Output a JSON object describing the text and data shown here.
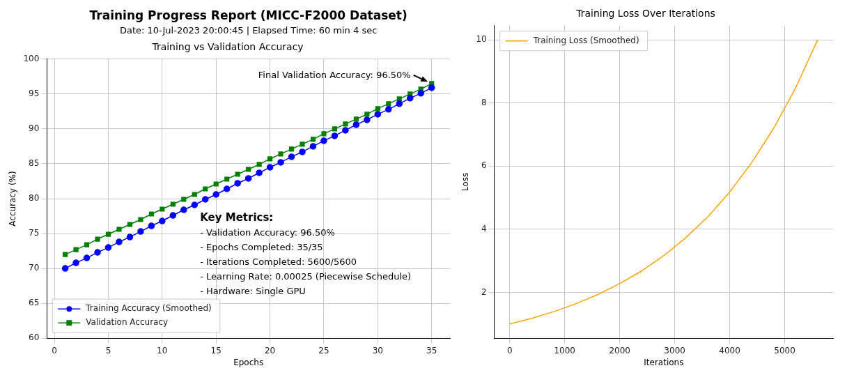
{
  "chart_data": [
    {
      "type": "line",
      "title": "Training vs Validation Accuracy",
      "xlabel": "Epochs",
      "ylabel": "Accuracy (%)",
      "x": [
        1,
        2,
        3,
        4,
        5,
        6,
        7,
        8,
        9,
        10,
        11,
        12,
        13,
        14,
        15,
        16,
        17,
        18,
        19,
        20,
        21,
        22,
        23,
        24,
        25,
        26,
        27,
        28,
        29,
        30,
        31,
        32,
        33,
        34,
        35
      ],
      "series": [
        {
          "name": "Training Accuracy (Smoothed)",
          "color": "#0000ff",
          "marker": "circle",
          "values": [
            70.0,
            70.8,
            71.5,
            72.3,
            73.0,
            73.8,
            74.5,
            75.3,
            76.1,
            76.8,
            77.6,
            78.4,
            79.1,
            79.9,
            80.6,
            81.4,
            82.2,
            82.9,
            83.7,
            84.5,
            85.2,
            86.0,
            86.7,
            87.5,
            88.3,
            89.0,
            89.8,
            90.6,
            91.3,
            92.1,
            92.8,
            93.6,
            94.4,
            95.1,
            95.9
          ]
        },
        {
          "name": "Validation Accuracy",
          "color": "#008000",
          "marker": "square",
          "values": [
            72.0,
            72.7,
            73.4,
            74.2,
            74.9,
            75.6,
            76.3,
            77.0,
            77.8,
            78.5,
            79.2,
            79.9,
            80.6,
            81.4,
            82.1,
            82.8,
            83.5,
            84.2,
            84.9,
            85.7,
            86.4,
            87.1,
            87.8,
            88.5,
            89.3,
            90.0,
            90.7,
            91.4,
            92.1,
            92.9,
            93.6,
            94.3,
            95.0,
            95.7,
            96.5
          ]
        }
      ],
      "xlim": [
        -0.7,
        36.7
      ],
      "xticks": [
        0,
        5,
        10,
        15,
        20,
        25,
        30,
        35
      ],
      "ylim": [
        60,
        100
      ],
      "yticks": [
        60,
        65,
        70,
        75,
        80,
        85,
        90,
        95,
        100
      ],
      "grid": true,
      "legend": "bottom left",
      "line_style": "solid",
      "annotations": [
        "Training Progress Report (MICC-F2000 Dataset)",
        "Date: 10-Jul-2023 20:00:45 | Elapsed Time: 60 min 4 sec",
        "Key Metrics:",
        "- Validation Accuracy: 96.50%",
        "- Epochs Completed: 35/35",
        "- Iterations Completed: 5600/5600",
        "- Learning Rate: 0.00025 (Piecewise Schedule)",
        "- Hardware: Single GPU",
        {
          "text": "Final Validation Accuracy: 96.50%",
          "x": 35,
          "y": 96.5
        }
      ]
    },
    {
      "type": "line",
      "title": "Training Loss Over Iterations",
      "xlabel": "Iterations",
      "ylabel": "Loss",
      "x": [
        0,
        400,
        800,
        1200,
        1600,
        2000,
        2400,
        2800,
        3200,
        3600,
        4000,
        4400,
        4800,
        5200,
        5600
      ],
      "series": [
        {
          "name": "Training Loss (Smoothed)",
          "color": "#ffa500",
          "values": [
            1.0,
            1.18,
            1.39,
            1.64,
            1.93,
            2.28,
            2.68,
            3.16,
            3.73,
            4.39,
            5.18,
            6.11,
            7.2,
            8.48,
            10.0
          ]
        }
      ],
      "xlim": [
        -280,
        5880
      ],
      "xticks": [
        0,
        1000,
        2000,
        3000,
        4000,
        5000
      ],
      "ylim": [
        0.55,
        10.45
      ],
      "yticks": [
        2,
        4,
        6,
        8,
        10
      ],
      "grid": true,
      "legend": "top left",
      "marker": "none",
      "line_style": "solid"
    }
  ]
}
